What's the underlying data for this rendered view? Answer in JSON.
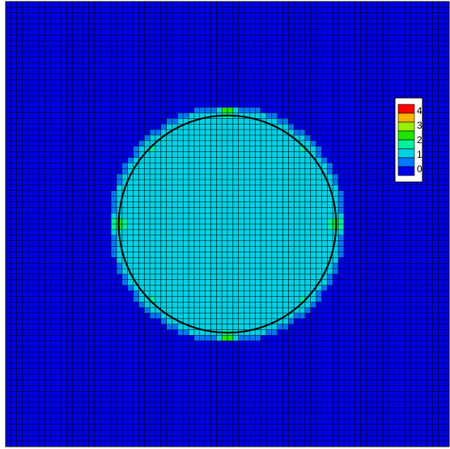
{
  "chart_data": {
    "type": "heatmap",
    "title": "",
    "xlabel": "",
    "ylabel": "",
    "grid": true,
    "grid_cells": [
      80,
      80
    ],
    "legend": {
      "placement": "right",
      "ticks": [
        "4",
        "3",
        "2",
        "1",
        "0"
      ],
      "levels": [
        {
          "value": 4,
          "color": "#ff0000"
        },
        {
          "value": 3.5,
          "color": "#ffb400"
        },
        {
          "value": 3,
          "color": "#96f000"
        },
        {
          "value": 2,
          "color": "#1ee600"
        },
        {
          "value": 1.5,
          "color": "#00f0a0"
        },
        {
          "value": 1,
          "color": "#00d2e6"
        },
        {
          "value": 0.5,
          "color": "#0078ff"
        },
        {
          "value": 0,
          "color": "#0000e6"
        }
      ]
    },
    "background_value": 0,
    "disk": {
      "center": [
        0.5,
        0.5
      ],
      "radius": 0.245,
      "value": 1
    },
    "hotspots": [
      {
        "x": 0.5,
        "y": 0.245,
        "peak": 4
      },
      {
        "x": 0.674,
        "y": 0.327,
        "peak": 2
      },
      {
        "x": 0.745,
        "y": 0.5,
        "peak": 4
      },
      {
        "x": 0.674,
        "y": 0.673,
        "peak": 2
      },
      {
        "x": 0.5,
        "y": 0.755,
        "peak": 4
      },
      {
        "x": 0.326,
        "y": 0.673,
        "peak": 2
      },
      {
        "x": 0.255,
        "y": 0.5,
        "peak": 4
      },
      {
        "x": 0.326,
        "y": 0.327,
        "peak": 2
      }
    ]
  }
}
